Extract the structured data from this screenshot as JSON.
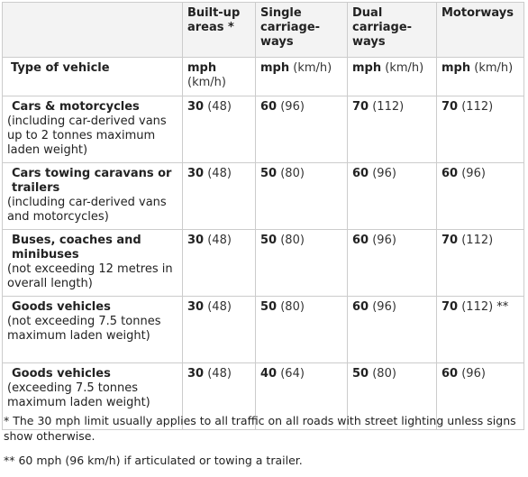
{
  "table": {
    "columns": [
      {
        "id": "built-up",
        "label": "Built-up areas *"
      },
      {
        "id": "single",
        "label": "Single carriage-ways"
      },
      {
        "id": "dual",
        "label": "Dual carriage-ways"
      },
      {
        "id": "motorways",
        "label": "Motorways"
      }
    ],
    "type_label": "Type of vehicle",
    "unit_mph": "mph",
    "unit_kmh": "(km/h)",
    "rows": [
      {
        "name": "Cars & motorcycles",
        "note": "(including car-derived vans up to 2 tonnes maximum laden weight)",
        "cells": [
          {
            "mph": "30",
            "kmh": "(48)",
            "mark": ""
          },
          {
            "mph": "60",
            "kmh": "(96)",
            "mark": ""
          },
          {
            "mph": "70",
            "kmh": "(112)",
            "mark": ""
          },
          {
            "mph": "70",
            "kmh": "(112)",
            "mark": ""
          }
        ]
      },
      {
        "name": "Cars towing caravans or trailers",
        "note": "(including car-derived vans and motorcycles)",
        "cells": [
          {
            "mph": "30",
            "kmh": "(48)",
            "mark": ""
          },
          {
            "mph": "50",
            "kmh": "(80)",
            "mark": ""
          },
          {
            "mph": "60",
            "kmh": "(96)",
            "mark": ""
          },
          {
            "mph": "60",
            "kmh": "(96)",
            "mark": ""
          }
        ]
      },
      {
        "name": "Buses, coaches and minibuses",
        "note": "(not exceeding 12 metres in overall length)",
        "cells": [
          {
            "mph": "30",
            "kmh": "(48)",
            "mark": ""
          },
          {
            "mph": "50",
            "kmh": "(80)",
            "mark": ""
          },
          {
            "mph": "60",
            "kmh": "(96)",
            "mark": ""
          },
          {
            "mph": "70",
            "kmh": "(112)",
            "mark": ""
          }
        ]
      },
      {
        "name": "Goods vehicles",
        "note": "(not exceeding 7.5 tonnes maximum laden weight)",
        "cells": [
          {
            "mph": "30",
            "kmh": "(48)",
            "mark": ""
          },
          {
            "mph": "50",
            "kmh": "(80)",
            "mark": ""
          },
          {
            "mph": "60",
            "kmh": "(96)",
            "mark": ""
          },
          {
            "mph": "70",
            "kmh": "(112)",
            "mark": "**"
          }
        ]
      },
      {
        "name": "Goods vehicles",
        "note": "(exceeding 7.5 tonnes maximum laden weight)",
        "cells": [
          {
            "mph": "30",
            "kmh": "(48)",
            "mark": ""
          },
          {
            "mph": "40",
            "kmh": "(64)",
            "mark": ""
          },
          {
            "mph": "50",
            "kmh": "(80)",
            "mark": ""
          },
          {
            "mph": "60",
            "kmh": "(96)",
            "mark": ""
          }
        ]
      }
    ]
  },
  "footnotes": [
    "* The 30 mph limit usually applies to all traffic on all roads with street lighting unless signs show otherwise.",
    "** 60 mph (96 km/h) if articulated or towing a trailer."
  ]
}
